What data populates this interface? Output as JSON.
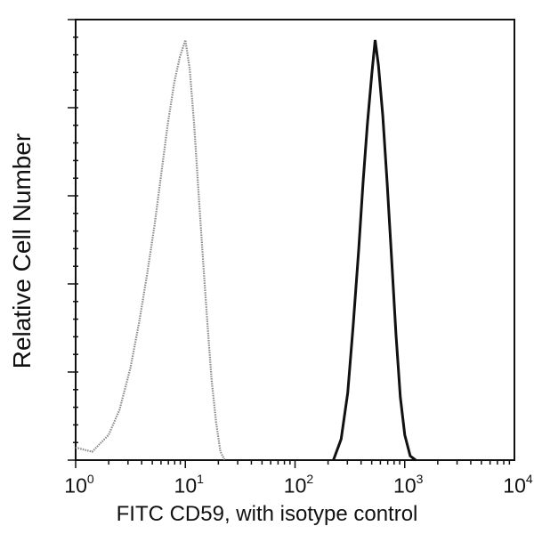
{
  "chart_data": {
    "type": "line",
    "title": "",
    "xlabel": "FITC CD59, with isotype control",
    "ylabel": "Relative Cell Number",
    "xscale": "log",
    "xlim": [
      1,
      10000
    ],
    "ylim": [
      0,
      1
    ],
    "x_ticks": [
      {
        "base": "10",
        "exp": "0"
      },
      {
        "base": "10",
        "exp": "1"
      },
      {
        "base": "10",
        "exp": "2"
      },
      {
        "base": "10",
        "exp": "3"
      },
      {
        "base": "10",
        "exp": "4"
      }
    ],
    "y_tick_labels": [],
    "grid": false,
    "legend": null,
    "series": [
      {
        "name": "Isotype control",
        "style": "dotted-gray",
        "color": "#8a8a8a",
        "log10_x": [
          0.0,
          0.15,
          0.3,
          0.4,
          0.5,
          0.58,
          0.65,
          0.72,
          0.78,
          0.84,
          0.9,
          0.95,
          1.0,
          1.04,
          1.08,
          1.12,
          1.16,
          1.2,
          1.24,
          1.28,
          1.32,
          1.36
        ],
        "relative_count": [
          0.03,
          0.02,
          0.06,
          0.12,
          0.22,
          0.33,
          0.44,
          0.56,
          0.68,
          0.8,
          0.9,
          0.96,
          1.0,
          0.93,
          0.8,
          0.64,
          0.48,
          0.33,
          0.19,
          0.09,
          0.02,
          0.0
        ]
      },
      {
        "name": "FITC CD59",
        "style": "solid-black",
        "color": "#111111",
        "log10_x": [
          2.35,
          2.42,
          2.48,
          2.53,
          2.58,
          2.62,
          2.66,
          2.7,
          2.73,
          2.76,
          2.8,
          2.84,
          2.88,
          2.92,
          2.96,
          3.0,
          3.05,
          3.1
        ],
        "relative_count": [
          0.0,
          0.05,
          0.16,
          0.32,
          0.5,
          0.66,
          0.8,
          0.92,
          1.0,
          0.94,
          0.82,
          0.66,
          0.48,
          0.3,
          0.15,
          0.06,
          0.01,
          0.0
        ]
      }
    ]
  },
  "footnote_clipped": true
}
